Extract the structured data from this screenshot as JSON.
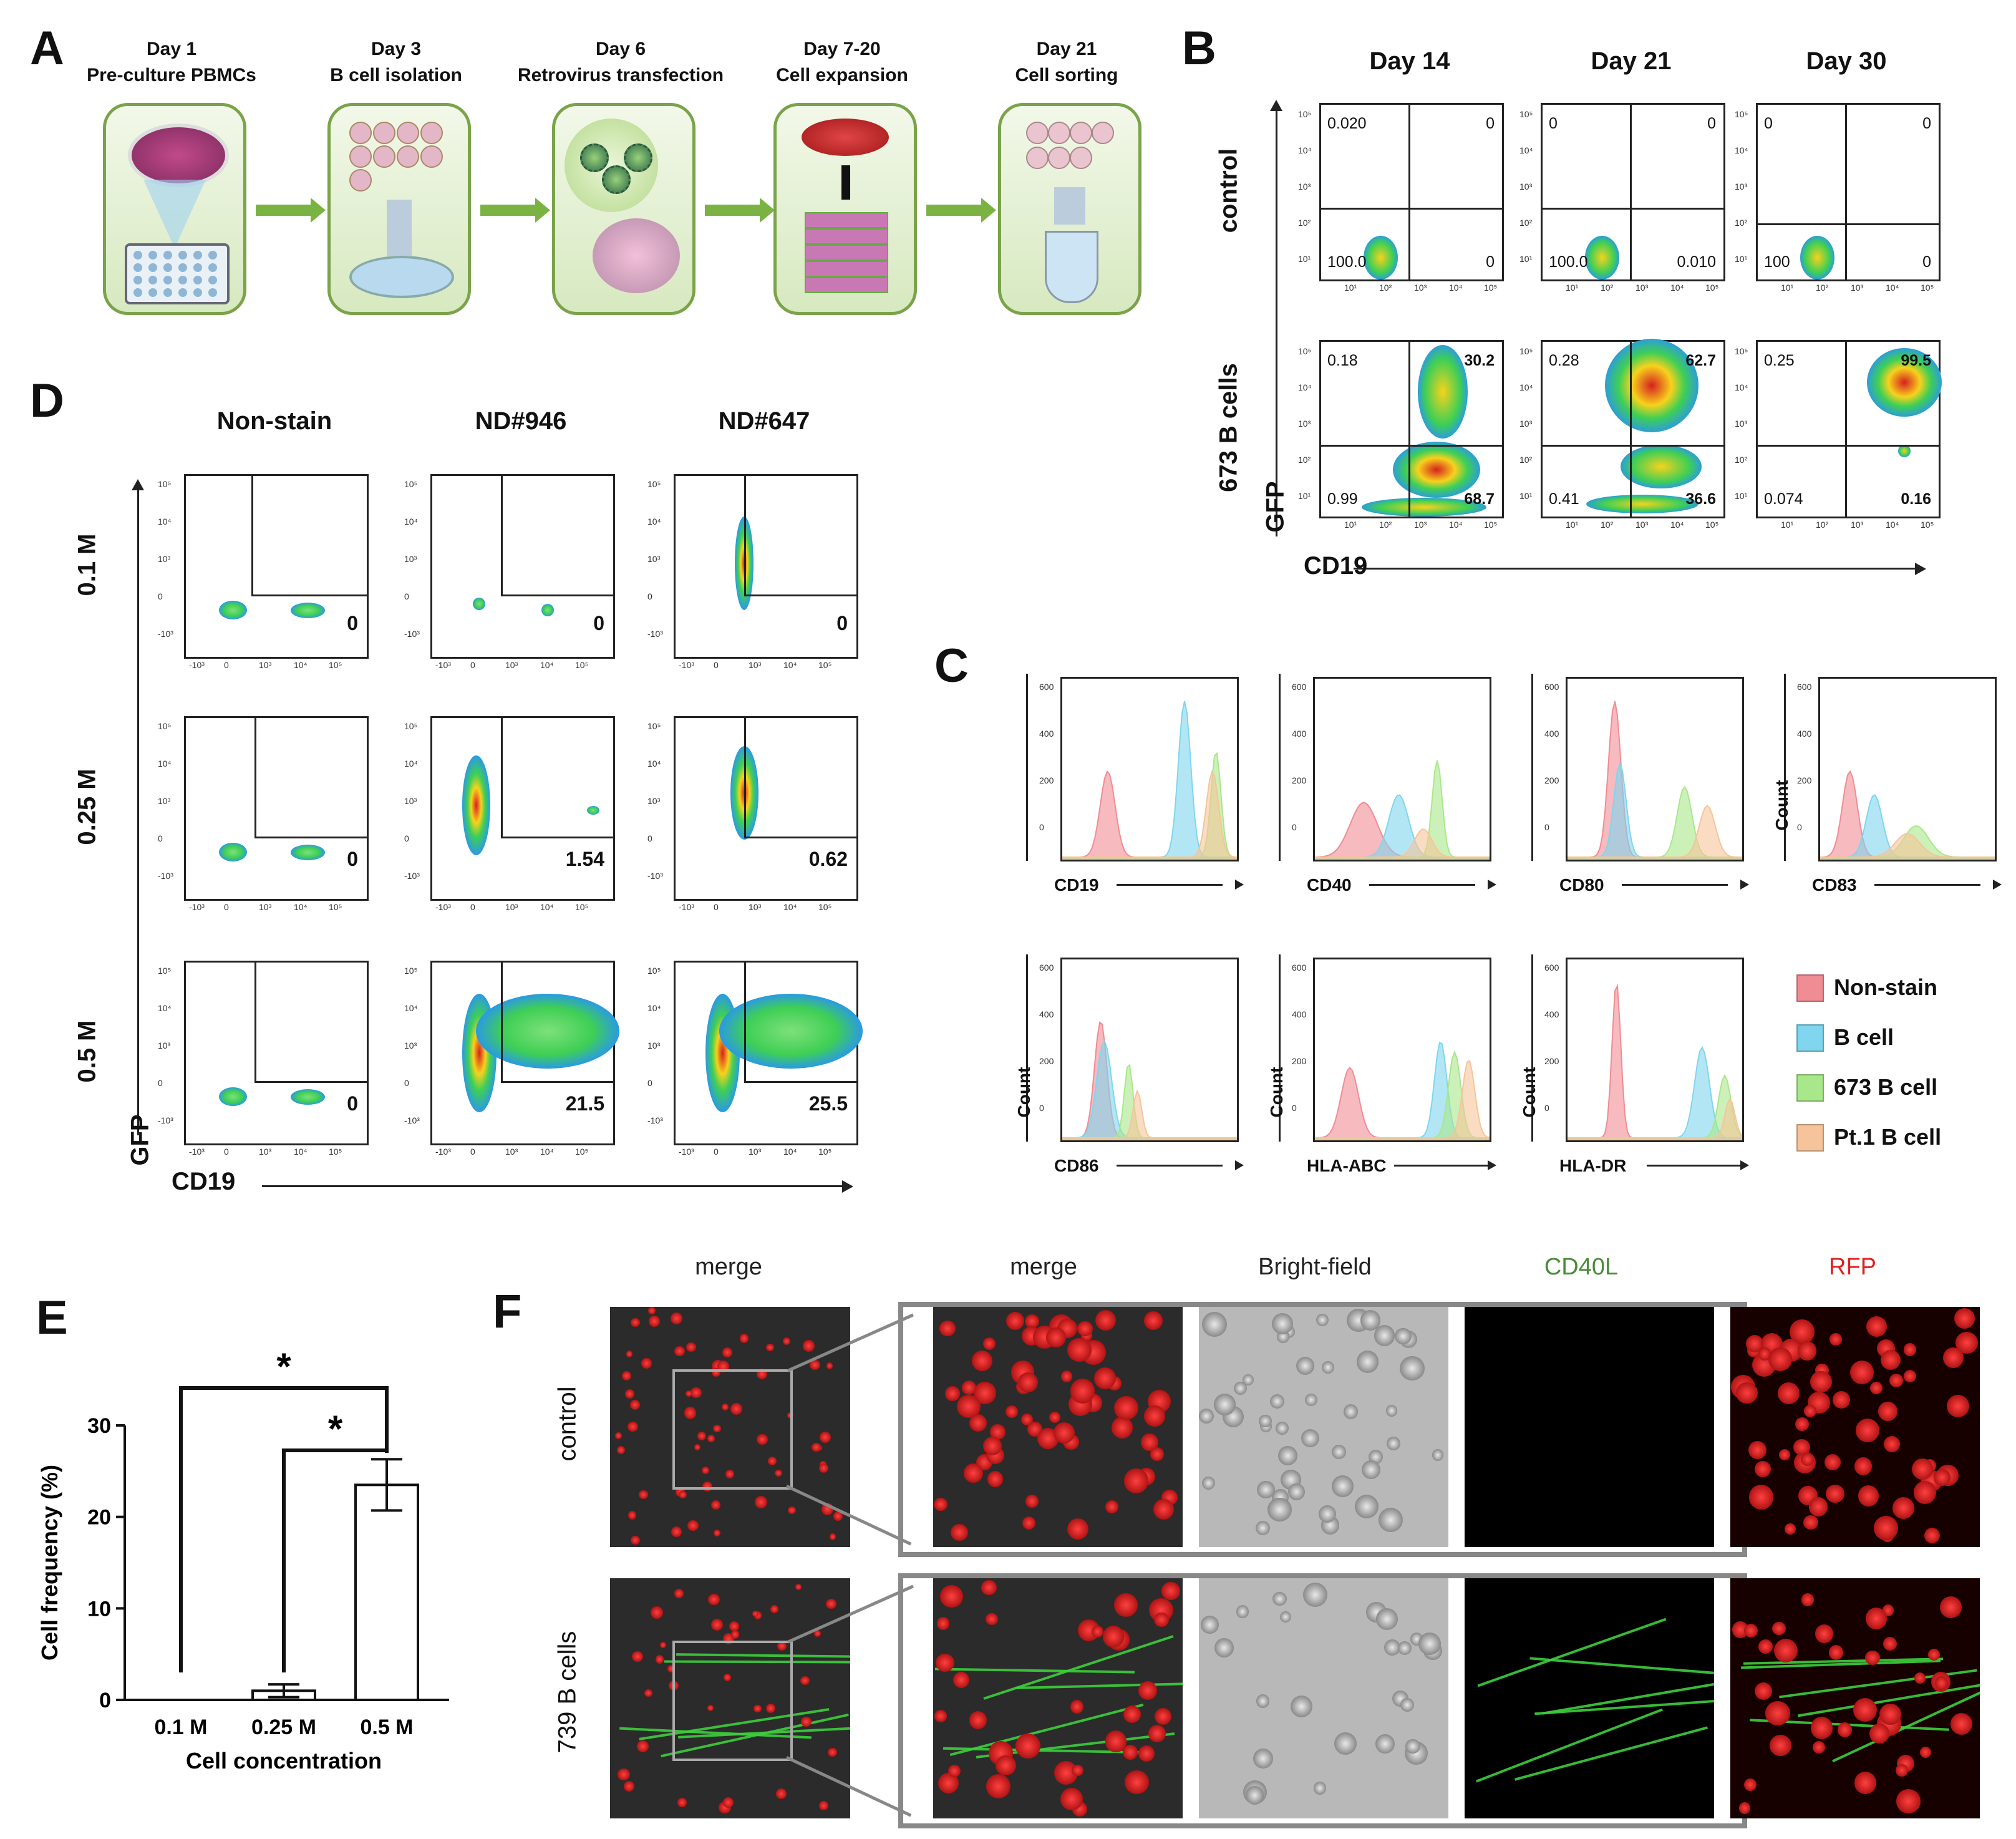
{
  "panel_labels": {
    "a": "A",
    "b": "B",
    "c": "C",
    "d": "D",
    "e": "E",
    "f": "F"
  },
  "panel_a": {
    "steps": [
      {
        "day": "Day 1",
        "desc": "Pre-culture PBMCs"
      },
      {
        "day": "Day 3",
        "desc": "B cell isolation"
      },
      {
        "day": "Day 6",
        "desc": "Retrovirus transfection"
      },
      {
        "day": "Day 7-20",
        "desc": "Cell expansion"
      },
      {
        "day": "Day 21",
        "desc": "Cell sorting"
      }
    ]
  },
  "panel_b": {
    "columns": [
      "Day 14",
      "Day 21",
      "Day 30"
    ],
    "rows": [
      "control",
      "673 B cells"
    ],
    "y_axis": "GFP",
    "x_axis": "CD19",
    "quadrants": [
      [
        {
          "ul": "0.020",
          "ur": "0",
          "ll": "100.0",
          "lr": "0"
        },
        {
          "ul": "0",
          "ur": "0",
          "ll": "100.0",
          "lr": "0.010"
        },
        {
          "ul": "0",
          "ur": "0",
          "ll": "100",
          "lr": "0"
        }
      ],
      [
        {
          "ul": "0.18",
          "ur": "30.2",
          "ll": "0.99",
          "lr": "68.7"
        },
        {
          "ul": "0.28",
          "ur": "62.7",
          "ll": "0.41",
          "lr": "36.6"
        },
        {
          "ul": "0.25",
          "ur": "99.5",
          "ll": "0.074",
          "lr": "0.16"
        }
      ]
    ],
    "tick_y": [
      "10⁵",
      "10⁴",
      "10³",
      "10²",
      "10¹"
    ],
    "tick_x": [
      "10¹",
      "10²",
      "10³",
      "10⁴",
      "10⁵"
    ]
  },
  "panel_d": {
    "columns": [
      "Non-stain",
      "ND#946",
      "ND#647"
    ],
    "rows": [
      "0.1 M",
      "0.25 M",
      "0.5 M"
    ],
    "y_axis": "GFP",
    "x_axis": "CD19",
    "gate_values": [
      [
        "0",
        "0",
        "0"
      ],
      [
        "0",
        "1.54",
        "0.62"
      ],
      [
        "0",
        "21.5",
        "25.5"
      ]
    ],
    "tick_x": [
      "-10³",
      "0",
      "10³",
      "10⁴",
      "10⁵"
    ],
    "tick_y": [
      "10⁵",
      "10⁴",
      "10³",
      "0",
      "-10³"
    ]
  },
  "panel_c": {
    "markers": [
      "CD19",
      "CD40",
      "CD80",
      "CD83",
      "CD86",
      "HLA-ABC",
      "HLA-DR"
    ],
    "y_label": "Count",
    "y_ticks": [
      "600",
      "400",
      "200",
      "0"
    ],
    "legend": [
      {
        "label": "Non-stain",
        "color": "#f08c94"
      },
      {
        "label": "B cell",
        "color": "#7fd6ee"
      },
      {
        "label": "673 B cell",
        "color": "#a8e88a"
      },
      {
        "label": "Pt.1 B cell",
        "color": "#f6c49a"
      }
    ]
  },
  "chart_data": {
    "type": "bar",
    "categories": [
      "0.1 M",
      "0.25 M",
      "0.5 M"
    ],
    "values": [
      0,
      1.0,
      23.5
    ],
    "errors": [
      0,
      0.7,
      2.8
    ],
    "title": "",
    "xlabel": "Cell concentration",
    "ylabel": "Cell frequency (%)",
    "ylim": [
      0,
      30
    ],
    "yticks": [
      "0",
      "10",
      "20",
      "30"
    ],
    "significance": [
      {
        "from": "0.1 M",
        "to": "0.5 M",
        "label": "*"
      },
      {
        "from": "0.25 M",
        "to": "0.5 M",
        "label": "*"
      }
    ]
  },
  "panel_f": {
    "headers": [
      "merge",
      "merge",
      "Bright-field",
      "CD40L",
      "RFP"
    ],
    "header_colors": [
      "#222222",
      "#222222",
      "#222222",
      "#4a8a3a",
      "#e02020"
    ],
    "rows": [
      "control",
      "739 B cells"
    ]
  }
}
